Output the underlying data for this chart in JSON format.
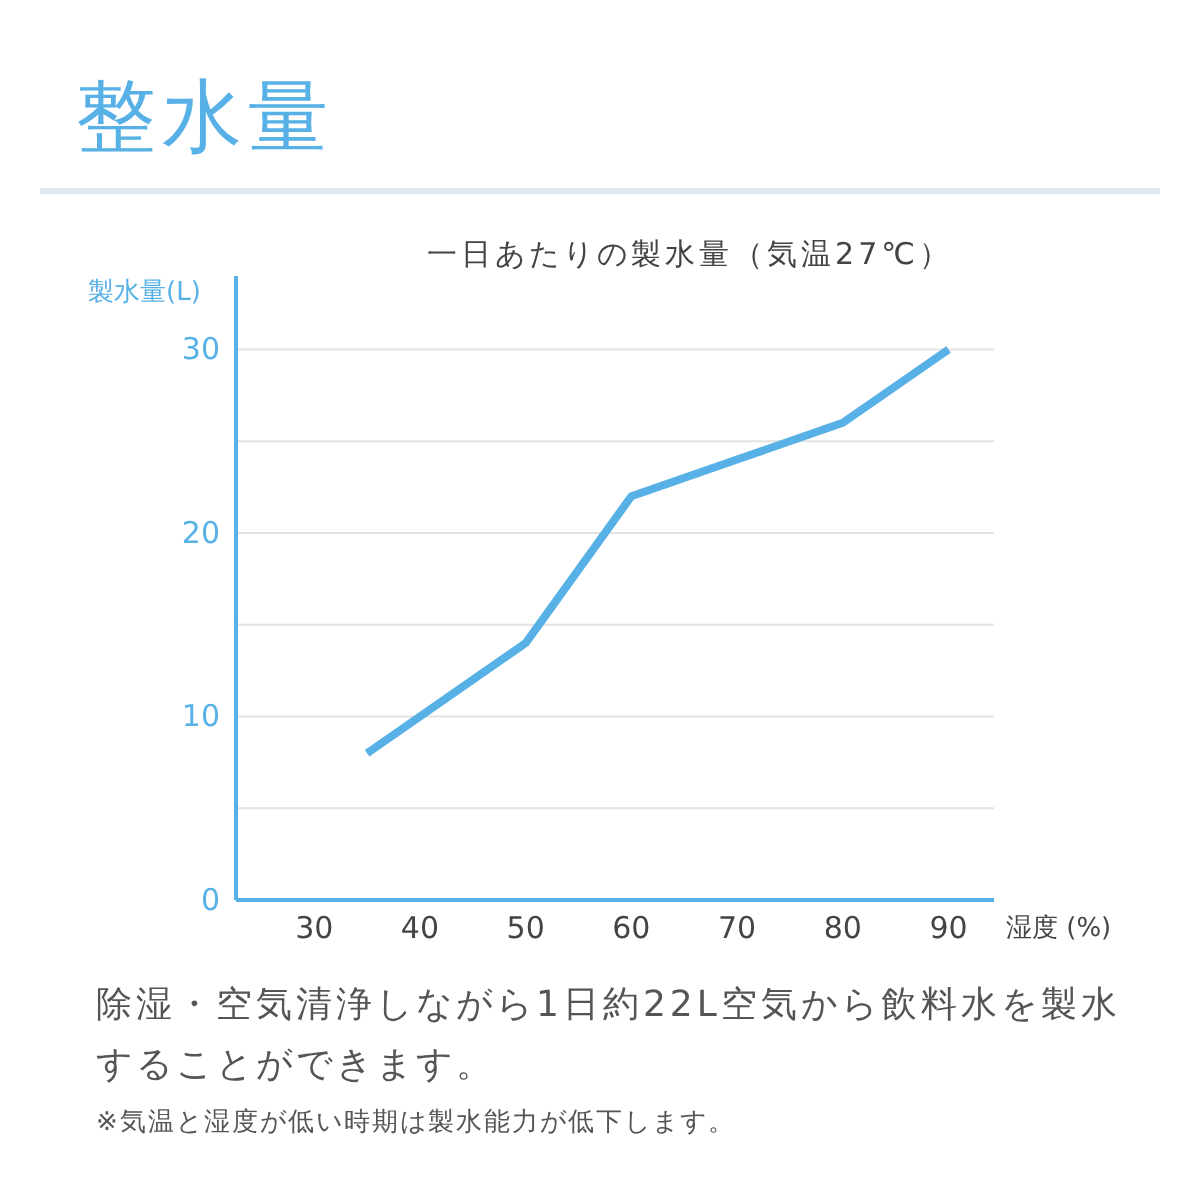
{
  "chart_data": {
    "type": "line",
    "title": "整水量",
    "subtitle": "一日あたりの製水量（気温27℃）",
    "ylabel": "製水量(L)",
    "xlabel": "湿度 (%)",
    "x": [
      35,
      40,
      50,
      60,
      70,
      80,
      90
    ],
    "series": [
      {
        "color": "#58b1e6",
        "values": [
          8,
          10,
          14,
          22,
          24,
          26,
          30
        ]
      }
    ],
    "xlim": [
      22.6,
      94.3
    ],
    "xticks": [
      30,
      40,
      50,
      60,
      70,
      80,
      90
    ],
    "ylim": [
      0,
      34
    ],
    "yticks": [
      0,
      {
        "value": 5,
        "label": null
      },
      10,
      {
        "value": 15,
        "label": null
      },
      20,
      {
        "value": 25,
        "label": null
      },
      30
    ],
    "grid": "y",
    "marker": "none",
    "line_style": "solid",
    "annotations": [
      "除湿・空気清浄しながら1日約22L空気から飲料水を製水することができます。",
      "※気温と湿度が低い時期は製水能力が低下します。"
    ]
  }
}
